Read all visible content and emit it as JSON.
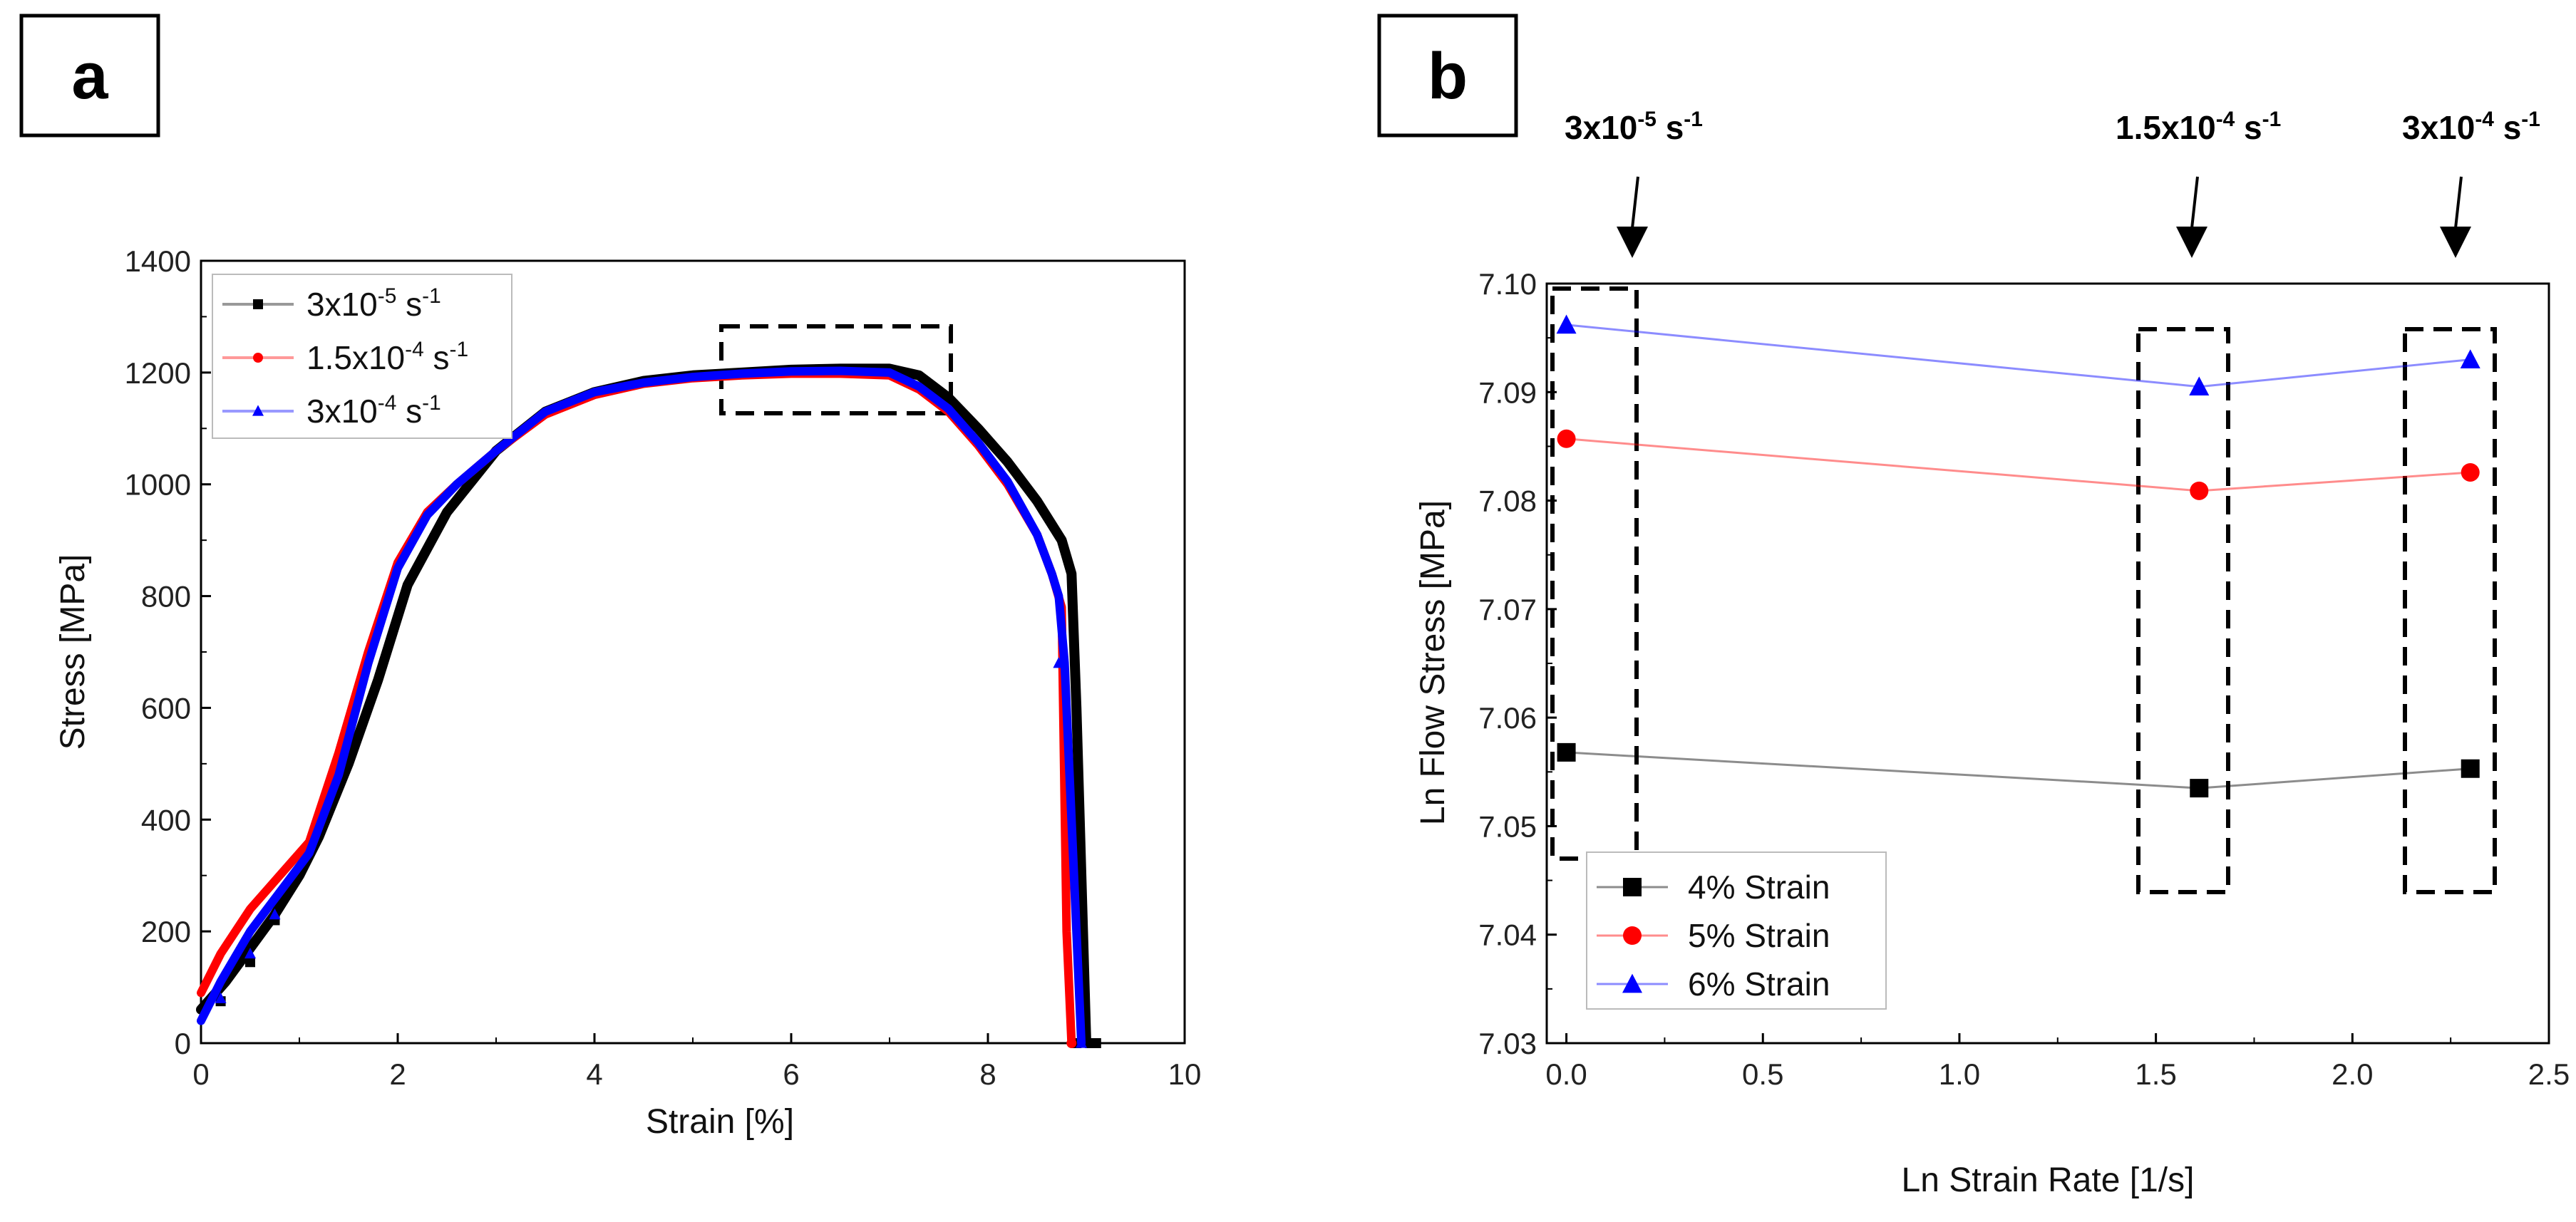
{
  "panels": {
    "a": "a",
    "b": "b"
  },
  "chart_data": [
    {
      "type": "line",
      "panel": "a",
      "xlabel": "Strain [%]",
      "ylabel": "Stress [MPa]",
      "xlim": [
        0,
        10
      ],
      "ylim": [
        0,
        1400
      ],
      "xticks": [
        "0",
        "2",
        "4",
        "6",
        "8",
        "10"
      ],
      "yticks": [
        "0",
        "200",
        "400",
        "600",
        "800",
        "1000",
        "1200",
        "1400"
      ],
      "series": [
        {
          "name": "3x10-5 s-1",
          "legend": {
            "base": "3x10",
            "sup": "-5",
            "mid": " s",
            "sup2": "-1"
          },
          "color": "#000000",
          "marker": "square",
          "x": [
            0,
            0.25,
            0.5,
            0.75,
            1.0,
            1.2,
            1.5,
            1.8,
            2.1,
            2.5,
            3.0,
            3.5,
            4.0,
            4.5,
            5.0,
            5.5,
            6.0,
            6.5,
            7.0,
            7.3,
            7.6,
            7.9,
            8.2,
            8.5,
            8.75,
            8.85,
            8.9,
            9.0,
            9.1
          ],
          "y": [
            60,
            110,
            170,
            230,
            300,
            370,
            500,
            650,
            820,
            950,
            1060,
            1130,
            1165,
            1185,
            1195,
            1200,
            1205,
            1207,
            1207,
            1195,
            1155,
            1100,
            1040,
            970,
            900,
            840,
            600,
            0,
            0
          ],
          "markers_x": [
            0.2,
            0.5,
            0.75,
            8.9,
            9.1
          ],
          "markers_y": [
            75,
            145,
            220,
            0,
            0
          ]
        },
        {
          "name": "1.5x10-4 s-1",
          "legend": {
            "base": "1.5x10",
            "sup": "-4",
            "mid": " s",
            "sup2": "-1"
          },
          "color": "#ff0000",
          "marker": "circle",
          "x": [
            0,
            0.2,
            0.5,
            0.8,
            1.1,
            1.4,
            1.7,
            2.0,
            2.3,
            2.6,
            3.0,
            3.5,
            4.0,
            4.5,
            5.0,
            5.5,
            6.0,
            6.5,
            7.0,
            7.3,
            7.6,
            7.9,
            8.2,
            8.5,
            8.65,
            8.75,
            8.8,
            8.85
          ],
          "y": [
            90,
            160,
            240,
            300,
            360,
            520,
            700,
            860,
            950,
            1000,
            1060,
            1125,
            1160,
            1180,
            1190,
            1195,
            1198,
            1198,
            1195,
            1170,
            1130,
            1070,
            1000,
            910,
            840,
            780,
            200,
            0
          ],
          "markers_x": [
            8.85
          ],
          "markers_y": [
            0
          ]
        },
        {
          "name": "3x10-4 s-1",
          "legend": {
            "base": "3x10",
            "sup": "-4",
            "mid": " s",
            "sup2": "-1"
          },
          "color": "#0000ff",
          "marker": "triangle",
          "x": [
            0,
            0.2,
            0.5,
            0.8,
            1.1,
            1.4,
            1.7,
            2.0,
            2.3,
            2.6,
            3.0,
            3.5,
            4.0,
            4.5,
            5.0,
            5.5,
            6.0,
            6.5,
            7.0,
            7.3,
            7.6,
            7.9,
            8.2,
            8.5,
            8.65,
            8.72,
            8.78,
            8.9,
            8.95
          ],
          "y": [
            40,
            110,
            200,
            270,
            340,
            480,
            680,
            850,
            945,
            1000,
            1060,
            1130,
            1165,
            1182,
            1192,
            1198,
            1202,
            1203,
            1200,
            1175,
            1135,
            1075,
            1005,
            910,
            840,
            800,
            680,
            200,
            0
          ],
          "markers_x": [
            0.2,
            0.5,
            0.75,
            8.72,
            8.95
          ],
          "markers_y": [
            80,
            160,
            230,
            680,
            0
          ]
        }
      ]
    },
    {
      "type": "line",
      "panel": "b",
      "xlabel": "Ln Strain Rate [1/s]",
      "ylabel": "Ln Flow Stress [MPa]",
      "xlim": [
        -0.05,
        2.5
      ],
      "ylim": [
        7.03,
        7.1
      ],
      "xticks": [
        "0.0",
        "0.5",
        "1.0",
        "1.5",
        "2.0",
        "2.5"
      ],
      "yticks": [
        "7.03",
        "7.04",
        "7.05",
        "7.06",
        "7.07",
        "7.08",
        "7.09",
        "7.10"
      ],
      "x": [
        0,
        1.61,
        2.3
      ],
      "series": [
        {
          "name": "4% Strain",
          "color": "#000000",
          "marker": "square",
          "values": [
            7.0568,
            7.0535,
            7.0553
          ]
        },
        {
          "name": "5% Strain",
          "color": "#ff0000",
          "marker": "circle",
          "values": [
            7.0857,
            7.0809,
            7.0826
          ]
        },
        {
          "name": "6% Strain",
          "color": "#0000ff",
          "marker": "triangle",
          "values": [
            7.0962,
            7.0905,
            7.093
          ]
        }
      ],
      "annotations": [
        {
          "base": "3x10",
          "sup": "-5",
          "mid": " s",
          "sup2": "-1"
        },
        {
          "base": "1.5x10",
          "sup": "-4",
          "mid": " s",
          "sup2": "-1"
        },
        {
          "base": "3x10",
          "sup": "-4",
          "mid": " s",
          "sup2": "-1"
        }
      ]
    }
  ]
}
